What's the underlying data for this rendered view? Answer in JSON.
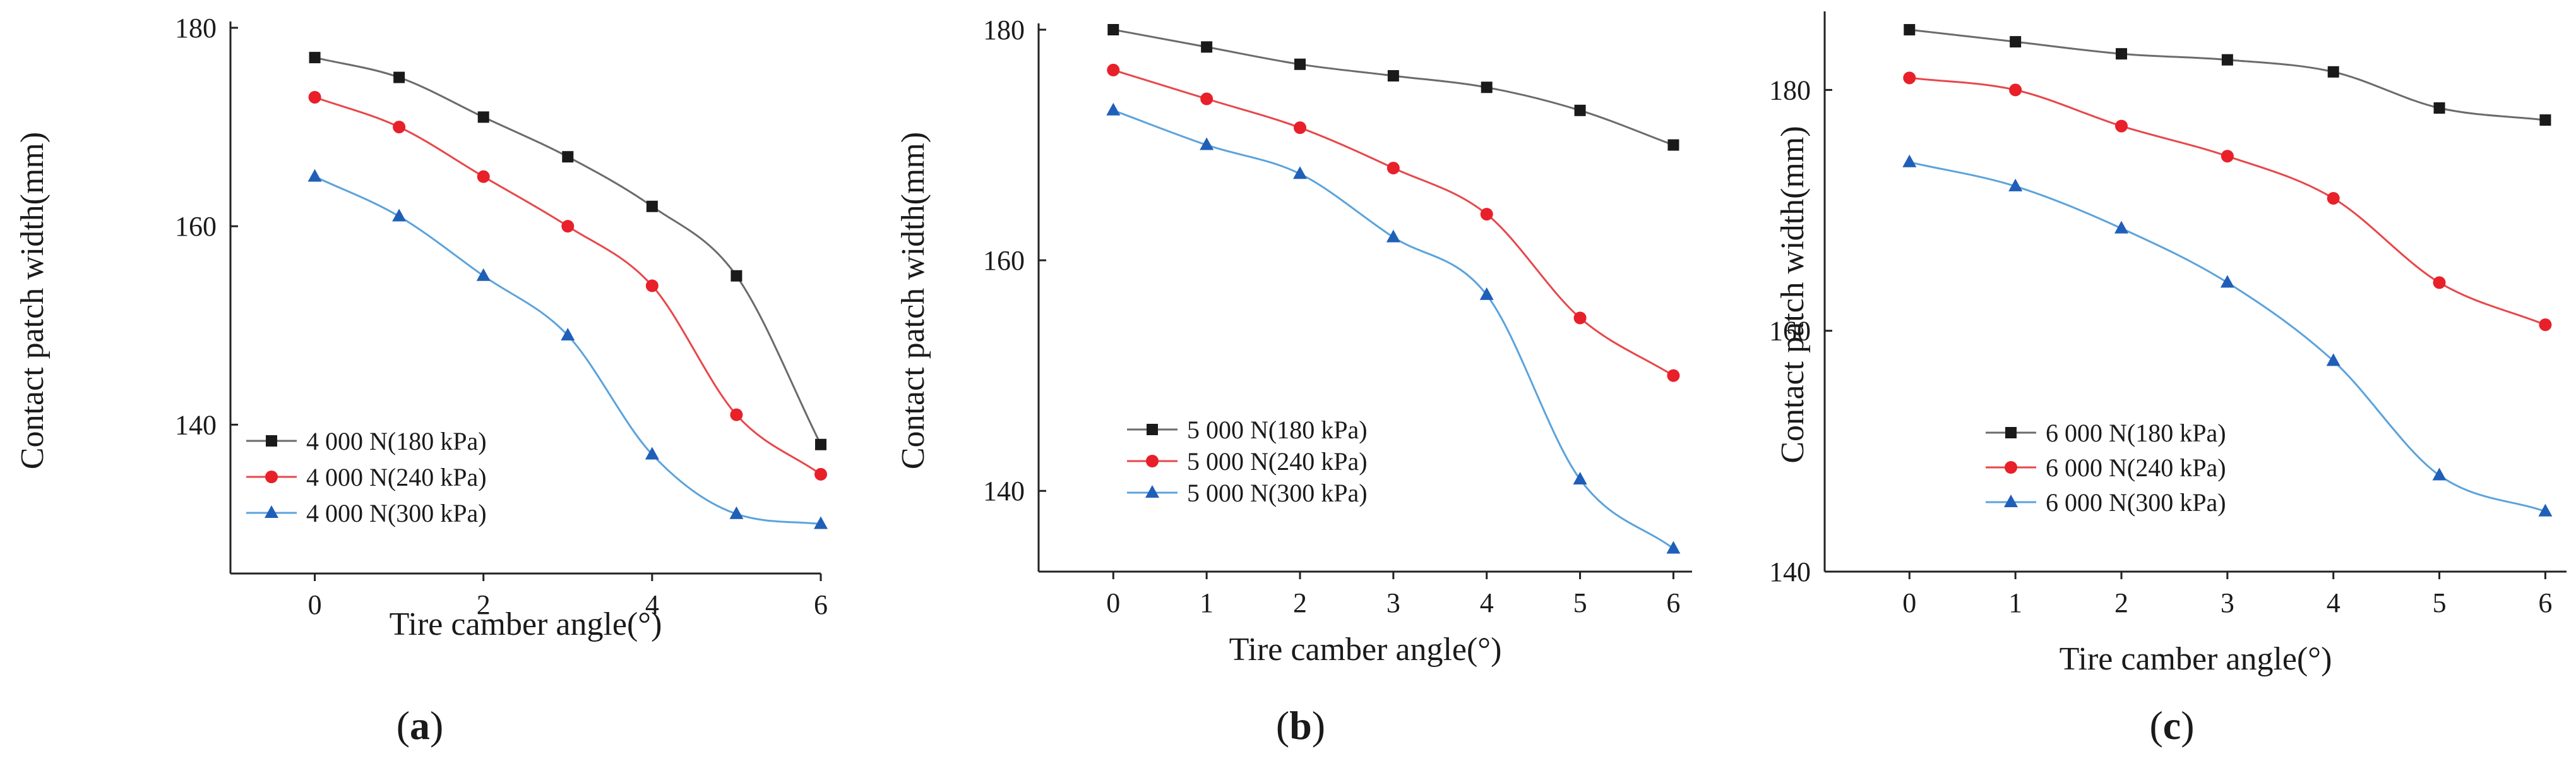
{
  "chart_data": [
    {
      "type": "line",
      "panel_label": "(a)",
      "xlabel": "Tire camber angle(°)",
      "ylabel": "Contact patch width(mm)",
      "x": [
        0,
        1,
        2,
        3,
        4,
        5,
        6
      ],
      "xticks": [
        0,
        2,
        4,
        6
      ],
      "xtick_labels": [
        "0",
        "2",
        "4",
        "6"
      ],
      "xlim": [
        -1,
        6
      ],
      "ylim": [
        125,
        180
      ],
      "yticks": [
        140,
        160,
        180
      ],
      "ytick_labels": [
        "140",
        "160",
        "180"
      ],
      "grid": false,
      "legend_position": "bottom-left",
      "series": [
        {
          "name": "4 000 N(180 kPa)",
          "color": "#6b6b6b",
          "marker_color": "#1a1a1a",
          "marker": "square",
          "values": [
            177,
            175,
            171,
            167,
            162,
            155,
            138
          ]
        },
        {
          "name": "4 000 N(240 kPa)",
          "color": "#e8474a",
          "marker_color": "#e8202a",
          "marker": "circle",
          "values": [
            173,
            170,
            165,
            160,
            154,
            141,
            135
          ]
        },
        {
          "name": "4 000 N(300 kPa)",
          "color": "#5ba3dc",
          "marker_color": "#1f5fb8",
          "marker": "triangle",
          "values": [
            165,
            161,
            155,
            149,
            137,
            131,
            130
          ]
        }
      ]
    },
    {
      "type": "line",
      "panel_label": "(b)",
      "xlabel": "Tire camber angle(°)",
      "ylabel": "Contact patch width(mm)",
      "x": [
        0,
        1,
        2,
        3,
        4,
        5,
        6
      ],
      "xticks": [
        0,
        1,
        2,
        3,
        4,
        5,
        6
      ],
      "xtick_labels": [
        "0",
        "1",
        "2",
        "3",
        "4",
        "5",
        "6"
      ],
      "xlim": [
        -0.8,
        6.2
      ],
      "ylim": [
        133,
        180
      ],
      "yticks": [
        140,
        160,
        180
      ],
      "ytick_labels": [
        "140",
        "160",
        "180"
      ],
      "grid": false,
      "legend_position": "bottom-left",
      "series": [
        {
          "name": "5 000 N(180 kPa)",
          "color": "#6b6b6b",
          "marker_color": "#1a1a1a",
          "marker": "square",
          "values": [
            180,
            178.5,
            177,
            176,
            175,
            173,
            170
          ]
        },
        {
          "name": "5 000 N(240 kPa)",
          "color": "#e8474a",
          "marker_color": "#e8202a",
          "marker": "circle",
          "values": [
            176.5,
            174,
            171.5,
            168,
            164,
            155,
            150
          ]
        },
        {
          "name": "5 000 N(300 kPa)",
          "color": "#5ba3dc",
          "marker_color": "#1f5fb8",
          "marker": "triangle",
          "values": [
            173,
            170,
            167.5,
            162,
            157,
            141,
            135
          ]
        }
      ]
    },
    {
      "type": "line",
      "panel_label": "(c)",
      "xlabel": "Tire camber angle(°)",
      "ylabel": "Contact patch width(mm)",
      "x": [
        0,
        1,
        2,
        3,
        4,
        5,
        6
      ],
      "xticks": [
        0,
        1,
        2,
        3,
        4,
        5,
        6
      ],
      "xtick_labels": [
        "0",
        "1",
        "2",
        "3",
        "4",
        "5",
        "6"
      ],
      "xlim": [
        -0.8,
        6.2
      ],
      "ylim": [
        140,
        186
      ],
      "yticks": [
        140,
        160,
        180
      ],
      "ytick_labels": [
        "140",
        "160",
        "180"
      ],
      "grid": false,
      "legend_position": "bottom-left",
      "series": [
        {
          "name": "6 000 N(180 kPa)",
          "color": "#6b6b6b",
          "marker_color": "#1a1a1a",
          "marker": "square",
          "values": [
            185,
            184,
            183,
            182.5,
            181.5,
            178.5,
            177.5
          ]
        },
        {
          "name": "6 000 N(240 kPa)",
          "color": "#e8474a",
          "marker_color": "#e8202a",
          "marker": "circle",
          "values": [
            181,
            180,
            177,
            174.5,
            171,
            164,
            160.5
          ]
        },
        {
          "name": "6 000 N(300 kPa)",
          "color": "#5ba3dc",
          "marker_color": "#1f5fb8",
          "marker": "triangle",
          "values": [
            174,
            172,
            168.5,
            164,
            157.5,
            148,
            145
          ]
        }
      ]
    }
  ]
}
